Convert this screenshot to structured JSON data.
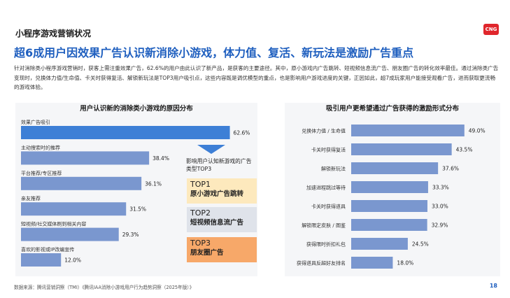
{
  "header": {
    "section_label": "小程序游戏营销状况",
    "logo_text": "CNG",
    "headline": "超6成用户因效果广告认识新消除小游戏，体力值、复活、新玩法是激励广告重点",
    "intro": "针对消除类小程序游戏营销时，获客上需注重效果广告，62.6%的用户由此认识了新产品，是获客的主要途径。其中，原小游戏内广告跳转、短视频信息流广告、朋友圈广告的转化效率最佳。通过消除类广告变现时，兑换体力值/生命值、卡关时获得复活、解锁新玩法是TOP3用户吸引点，这些内容既是调优模型的重点，也是影响用户游戏进度的关键，正因如此，超7成玩家用户能接受观看广告，进而获取更流畅的游戏体验。"
  },
  "callout": {
    "label": "影响用户认知新游戏的广告类型TOP3",
    "tops": [
      {
        "rank": "TOP1",
        "text": "原小游戏广告跳转"
      },
      {
        "rank": "TOP2",
        "text": "短视频信息流广告"
      },
      {
        "rank": "TOP3",
        "text": "朋友圈广告"
      }
    ]
  },
  "footer": {
    "source": "数据来源：腾讯营销洞察（TMI）《腾讯IAA消除小游戏用户行为趋势洞察（2025年版）》",
    "page": "18"
  },
  "colors": {
    "accent": "#1f5fbf",
    "bar_highlight": "#3d7fd6",
    "bar": "#7a97cf",
    "top1_bg": "#fde9bd",
    "top2_bg": "#dfe3ea",
    "top3_bg": "#f7a869"
  },
  "chart_data": [
    {
      "type": "bar",
      "orientation": "horizontal",
      "title": "用户认识新的消除类小游戏的原因分布",
      "categories": [
        "效果广告吸引",
        "主动搜索时的推荐",
        "平台推荐/专区推荐",
        "亲友推荐",
        "短视频/社交媒体刷到相关内容",
        "喜欢的影视或IP改编宣传"
      ],
      "values": [
        62.6,
        38.4,
        36.1,
        31.5,
        29.3,
        12.0
      ],
      "value_labels": [
        "62.6%",
        "38.4%",
        "36.1%",
        "31.5%",
        "29.3%",
        "12.0%"
      ],
      "unit": "%",
      "xlim": [
        0,
        65
      ],
      "label_position": "above-bar",
      "grid": false
    },
    {
      "type": "bar",
      "orientation": "horizontal",
      "title": "吸引用户更希望通过广告获得的激励形式分布",
      "categories": [
        "兑换体力值 / 生命值",
        "卡关时获得复活",
        "解锁新玩法",
        "加速进程跳过等待",
        "卡关时获得道具",
        "解锁限定皮肤 / 图鉴",
        "获得限时折扣礼包",
        "获得道具反超好友排名"
      ],
      "values": [
        49.0,
        43.5,
        37.6,
        33.3,
        33.0,
        32.9,
        24.5,
        18.0
      ],
      "value_labels": [
        "49.0%",
        "43.5%",
        "37.6%",
        "33.3%",
        "33.0%",
        "32.9%",
        "24.5%",
        "18.0%"
      ],
      "unit": "%",
      "xlim": [
        0,
        53
      ],
      "label_position": "left-of-bar",
      "grid": false
    }
  ]
}
